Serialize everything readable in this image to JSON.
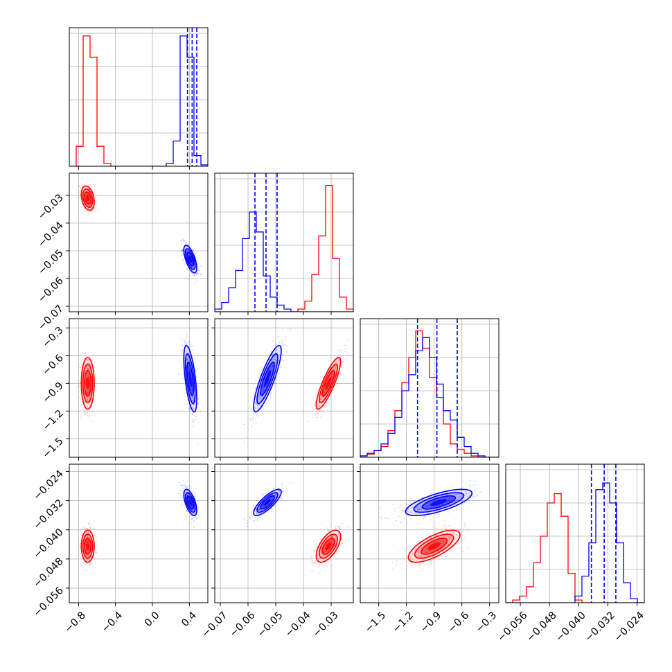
{
  "chart_data": {
    "type": "corner",
    "grid": true,
    "colors": {
      "red": "#ff0000",
      "blue": "#0000ff",
      "grid": "#b0b0b0"
    },
    "dimensions": [
      {
        "index": 0,
        "range": [
          -0.9,
          0.6
        ],
        "ticks": [
          -0.8,
          -0.4,
          0.0,
          0.4
        ],
        "tick_labels": [
          "−0.8",
          "−0.4",
          "0.0",
          "0.4"
        ]
      },
      {
        "index": 1,
        "range": [
          -0.072,
          -0.022
        ],
        "ticks": [
          -0.07,
          -0.06,
          -0.05,
          -0.04,
          -0.03
        ],
        "tick_labels": [
          "−0.07",
          "−0.06",
          "−0.05",
          "−0.04",
          "−0.03"
        ]
      },
      {
        "index": 2,
        "range": [
          -1.7,
          -0.2
        ],
        "ticks": [
          -1.5,
          -1.2,
          -0.9,
          -0.6,
          -0.3
        ],
        "tick_labels": [
          "−1.5",
          "−1.2",
          "−0.9",
          "−0.6",
          "−0.3"
        ]
      },
      {
        "index": 3,
        "range": [
          -0.06,
          -0.022
        ],
        "ticks": [
          -0.056,
          -0.048,
          -0.04,
          -0.032,
          -0.024
        ],
        "tick_labels": [
          "−0.056",
          "−0.048",
          "−0.040",
          "−0.032",
          "−0.024"
        ]
      }
    ],
    "series": [
      {
        "color": "red",
        "mean": [
          -0.7,
          -0.031,
          -0.9,
          -0.0445
        ],
        "std": [
          0.035,
          0.0022,
          0.14,
          0.0022
        ]
      },
      {
        "color": "blue",
        "mean": [
          0.41,
          -0.053,
          -0.85,
          -0.0325
        ],
        "std": [
          0.035,
          0.0025,
          0.18,
          0.0018
        ]
      }
    ],
    "correlations": [
      {
        "color": "red",
        "pairs": {
          "1-0": -0.3,
          "2-0": 0.0,
          "3-0": 0.0,
          "2-1": 0.85,
          "3-1": 0.6,
          "3-2": 0.7
        }
      },
      {
        "color": "blue",
        "pairs": {
          "1-0": -0.65,
          "2-0": -0.6,
          "3-0": -0.6,
          "2-1": 0.85,
          "3-1": 0.8,
          "3-2": 0.7
        }
      }
    ],
    "histograms": [
      {
        "dim": 0,
        "bins": [
          -0.9,
          -0.825,
          -0.75,
          -0.675,
          -0.6,
          -0.525,
          -0.45,
          -0.375,
          -0.3,
          -0.225,
          -0.15,
          -0.075,
          0.0,
          0.075,
          0.15,
          0.225,
          0.3,
          0.375,
          0.45,
          0.525,
          0.6
        ],
        "red": [
          0,
          0.15,
          0.98,
          0.82,
          0.15,
          0.02,
          0,
          0,
          0,
          0,
          0,
          0,
          0,
          0,
          0,
          0,
          0,
          0,
          0,
          0
        ],
        "blue": [
          0,
          0,
          0,
          0,
          0,
          0,
          0,
          0,
          0,
          0,
          0,
          0,
          0,
          0,
          0.02,
          0.19,
          0.98,
          0.82,
          0.08,
          0.01
        ],
        "quantiles": [
          0.38,
          0.43,
          0.48
        ]
      },
      {
        "dim": 1,
        "bins": [
          -0.072,
          -0.0695,
          -0.067,
          -0.0645,
          -0.062,
          -0.0595,
          -0.057,
          -0.0545,
          -0.052,
          -0.0495,
          -0.047,
          -0.0445,
          -0.042,
          -0.0395,
          -0.037,
          -0.0345,
          -0.032,
          -0.0295,
          -0.027,
          -0.0245,
          -0.022
        ],
        "red": [
          0,
          0,
          0,
          0,
          0,
          0,
          0,
          0,
          0,
          0,
          0,
          0,
          0.02,
          0.08,
          0.28,
          0.57,
          0.95,
          0.4,
          0.11,
          0.02
        ],
        "blue": [
          0.02,
          0.07,
          0.18,
          0.31,
          0.55,
          0.75,
          0.6,
          0.27,
          0.11,
          0.05,
          0.02,
          0,
          0,
          0,
          0,
          0,
          0,
          0,
          0,
          0
        ],
        "quantiles": [
          -0.0575,
          -0.0535,
          -0.0495
        ]
      },
      {
        "dim": 2,
        "bins": [
          -1.7,
          -1.625,
          -1.55,
          -1.475,
          -1.4,
          -1.325,
          -1.25,
          -1.175,
          -1.1,
          -1.025,
          -0.95,
          -0.875,
          -0.8,
          -0.725,
          -0.65,
          -0.575,
          -0.5,
          -0.425,
          -0.35,
          -0.275,
          -0.2
        ],
        "red": [
          0.01,
          0.02,
          0.05,
          0.08,
          0.2,
          0.35,
          0.56,
          0.75,
          0.95,
          0.82,
          0.6,
          0.45,
          0.25,
          0.1,
          0.06,
          0.03,
          0.01,
          0,
          0,
          0
        ],
        "blue": [
          0.01,
          0.03,
          0.05,
          0.1,
          0.18,
          0.3,
          0.5,
          0.62,
          0.8,
          0.9,
          0.75,
          0.55,
          0.35,
          0.28,
          0.15,
          0.08,
          0.03,
          0.01,
          0,
          0
        ],
        "quantiles": [
          -1.08,
          -0.87,
          -0.65
        ]
      },
      {
        "dim": 3,
        "bins": [
          -0.06,
          -0.0581,
          -0.0562,
          -0.0543,
          -0.0524,
          -0.0505,
          -0.0486,
          -0.0467,
          -0.0448,
          -0.0429,
          -0.041,
          -0.0391,
          -0.0372,
          -0.0353,
          -0.0334,
          -0.0315,
          -0.0296,
          -0.0277,
          -0.0258,
          -0.0239,
          -0.022
        ],
        "red": [
          0,
          0.02,
          0.05,
          0.12,
          0.3,
          0.5,
          0.75,
          0.82,
          0.65,
          0.22,
          0.02,
          0,
          0,
          0,
          0,
          0,
          0,
          0,
          0,
          0
        ],
        "blue": [
          0,
          0,
          0,
          0,
          0,
          0,
          0,
          0,
          0,
          0,
          0.05,
          0.2,
          0.45,
          0.85,
          0.9,
          0.75,
          0.45,
          0.15,
          0.03,
          0
        ],
        "quantiles": [
          -0.0365,
          -0.033,
          -0.0298
        ]
      }
    ]
  }
}
